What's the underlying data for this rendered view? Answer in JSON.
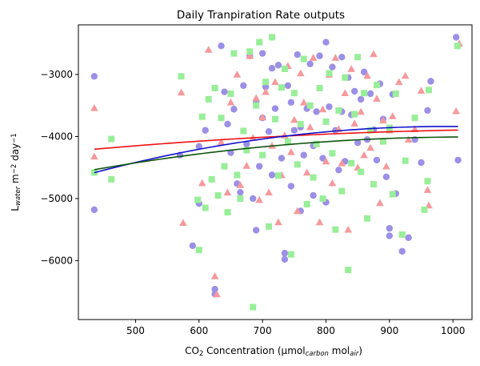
{
  "chart_data": {
    "type": "scatter",
    "title": "Daily Tranpiration Rate outputs",
    "xlabel": {
      "parts": [
        {
          "text": "CO",
          "style": "normal"
        },
        {
          "text": "2",
          "style": "sub"
        },
        {
          "text": " Concentration (µmol",
          "style": "normal"
        },
        {
          "text": "carbon",
          "style": "sub-italic"
        },
        {
          "text": " mol",
          "style": "normal"
        },
        {
          "text": "air",
          "style": "sub-italic"
        },
        {
          "text": ")",
          "style": "normal"
        }
      ]
    },
    "ylabel": {
      "parts": [
        {
          "text": "L",
          "style": "normal"
        },
        {
          "text": "water",
          "style": "sub-italic"
        },
        {
          "text": " m",
          "style": "normal"
        },
        {
          "text": "−2",
          "style": "sup"
        },
        {
          "text": " day",
          "style": "normal"
        },
        {
          "text": "−1",
          "style": "sup"
        }
      ]
    },
    "xlim": [
      410,
      1030
    ],
    "ylim": [
      -6950,
      -2200
    ],
    "x_ticks": [
      500,
      600,
      700,
      800,
      900,
      1000
    ],
    "x_tick_labels": [
      "500",
      "600",
      "700",
      "800",
      "900",
      "1000"
    ],
    "y_ticks": [
      -6000,
      -5000,
      -4000,
      -3000
    ],
    "y_tick_labels": [
      "−6000",
      "−5000",
      "−4000",
      "−3000"
    ],
    "grid": false,
    "legend": "none",
    "colors": {
      "series_a": "#9b8fe6",
      "series_b": "#f5999c",
      "series_c": "#99ee99",
      "fit_red": "#ee1111",
      "fit_blue": "#1111cc",
      "fit_green": "#115511"
    },
    "series": [
      {
        "marker": "circle",
        "color_key": "series_a",
        "x": [
          435,
          435,
          570,
          590,
          600,
          600,
          610,
          625,
          625,
          635,
          640,
          645,
          650,
          655,
          660,
          665,
          670,
          675,
          680,
          685,
          690,
          690,
          695,
          700,
          700,
          705,
          710,
          715,
          715,
          720,
          725,
          730,
          735,
          735,
          740,
          745,
          745,
          750,
          755,
          760,
          760,
          765,
          770,
          775,
          780,
          780,
          785,
          790,
          795,
          800,
          800,
          805,
          810,
          815,
          820,
          825,
          825,
          830,
          835,
          840,
          845,
          850,
          855,
          860,
          865,
          870,
          875,
          880,
          885,
          890,
          895,
          900,
          900,
          905,
          910,
          920,
          930,
          940,
          950,
          960,
          965,
          1005,
          1008
        ],
        "y": [
          -3030,
          -5180,
          -4300,
          -5760,
          -5080,
          -4160,
          -3900,
          -6460,
          -6540,
          -2540,
          -3280,
          -3800,
          -4260,
          -3560,
          -4760,
          -4900,
          -3180,
          -4120,
          -2700,
          -5000,
          -3450,
          -5510,
          -4480,
          -2660,
          -3700,
          -3200,
          -3920,
          -2900,
          -4620,
          -3550,
          -2850,
          -4350,
          -5880,
          -5980,
          -3180,
          -3450,
          -4800,
          -3900,
          -2680,
          -3850,
          -5200,
          -4300,
          -3550,
          -2830,
          -4150,
          -4950,
          -3600,
          -2700,
          -4350,
          -2480,
          -5060,
          -3520,
          -2880,
          -3900,
          -4540,
          -2720,
          -3600,
          -4400,
          -3050,
          -3650,
          -3270,
          -4100,
          -3400,
          -2960,
          -4050,
          -3310,
          -3890,
          -4380,
          -3150,
          -3720,
          -4650,
          -5480,
          -5600,
          -3320,
          -4920,
          -5850,
          -5630,
          -4050,
          -4420,
          -3580,
          -3110,
          -2400,
          -4380
        ]
      },
      {
        "marker": "triangle",
        "color_key": "series_b",
        "x": [
          435,
          435,
          572,
          575,
          605,
          615,
          625,
          628,
          635,
          645,
          650,
          660,
          665,
          675,
          680,
          685,
          690,
          695,
          700,
          705,
          710,
          715,
          720,
          725,
          730,
          735,
          740,
          745,
          750,
          755,
          760,
          765,
          770,
          775,
          780,
          785,
          790,
          795,
          800,
          805,
          810,
          815,
          820,
          825,
          830,
          835,
          840,
          845,
          850,
          855,
          860,
          865,
          870,
          875,
          880,
          885,
          890,
          895,
          900,
          905,
          915,
          925,
          930,
          940,
          950,
          960,
          962,
          1005,
          1010
        ],
        "y": [
          -3540,
          -4320,
          -3290,
          -5390,
          -4750,
          -2600,
          -6250,
          -6540,
          -4090,
          -4900,
          -3450,
          -3000,
          -4780,
          -4470,
          -2700,
          -4020,
          -3380,
          -5020,
          -3690,
          -3280,
          -4900,
          -4150,
          -3120,
          -5380,
          -4620,
          -3980,
          -2860,
          -4250,
          -3730,
          -5200,
          -2980,
          -3450,
          -4580,
          -3850,
          -2730,
          -4120,
          -5380,
          -3560,
          -4400,
          -3000,
          -4750,
          -2730,
          -3880,
          -4430,
          -3300,
          -5500,
          -2910,
          -3790,
          -4500,
          -3600,
          -4300,
          -3020,
          -4180,
          -2670,
          -3390,
          -5070,
          -3740,
          -4480,
          -3900,
          -3670,
          -3120,
          -3020,
          -4050,
          -3880,
          -3260,
          -4860,
          -5110,
          -3590,
          -2500
        ]
      },
      {
        "marker": "square",
        "color_key": "series_c",
        "x": [
          435,
          462,
          462,
          572,
          598,
          600,
          605,
          610,
          615,
          620,
          625,
          630,
          635,
          640,
          645,
          650,
          655,
          660,
          665,
          670,
          675,
          680,
          685,
          690,
          695,
          700,
          705,
          710,
          715,
          720,
          725,
          730,
          735,
          740,
          745,
          750,
          755,
          760,
          765,
          770,
          775,
          780,
          785,
          790,
          795,
          800,
          805,
          810,
          815,
          820,
          825,
          830,
          835,
          840,
          845,
          850,
          855,
          860,
          865,
          870,
          875,
          880,
          890,
          900,
          905,
          910,
          920,
          925,
          940,
          955,
          960,
          962,
          1007
        ],
        "y": [
          -4580,
          -4040,
          -4690,
          -3030,
          -5020,
          -5830,
          -3680,
          -5150,
          -3400,
          -4690,
          -3220,
          -4950,
          -3700,
          -4480,
          -5220,
          -3310,
          -2660,
          -4620,
          -5000,
          -3910,
          -4220,
          -2630,
          -6750,
          -3500,
          -2480,
          -4300,
          -3120,
          -5450,
          -2400,
          -3720,
          -4630,
          -3210,
          -2910,
          -4080,
          -5900,
          -3300,
          -4450,
          -3800,
          -2750,
          -5090,
          -3500,
          -4660,
          -4120,
          -3220,
          -5000,
          -3760,
          -2980,
          -4270,
          -5500,
          -3580,
          -4880,
          -3050,
          -6150,
          -4430,
          -3640,
          -2720,
          -4570,
          -3300,
          -5320,
          -3900,
          -4770,
          -3170,
          -4080,
          -3860,
          -4930,
          -3310,
          -5580,
          -4390,
          -3700,
          -5180,
          -4720,
          -3250,
          -2540
        ]
      }
    ],
    "fits": [
      {
        "color_key": "fit_red",
        "type": "quadratic",
        "x": [
          435,
          1008
        ],
        "coef": [
          -4205,
          0.8876,
          -0.0006076,
          0
        ]
      },
      {
        "color_key": "fit_blue",
        "type": "quadratic",
        "x": [
          435,
          1008
        ],
        "coef": [
          -4583,
          2.6876,
          -0.002424,
          0
        ]
      },
      {
        "color_key": "fit_green",
        "type": "quadratic",
        "x": [
          435,
          1008
        ],
        "coef": [
          -4535,
          1.7937,
          -0.001525,
          0
        ]
      }
    ]
  }
}
